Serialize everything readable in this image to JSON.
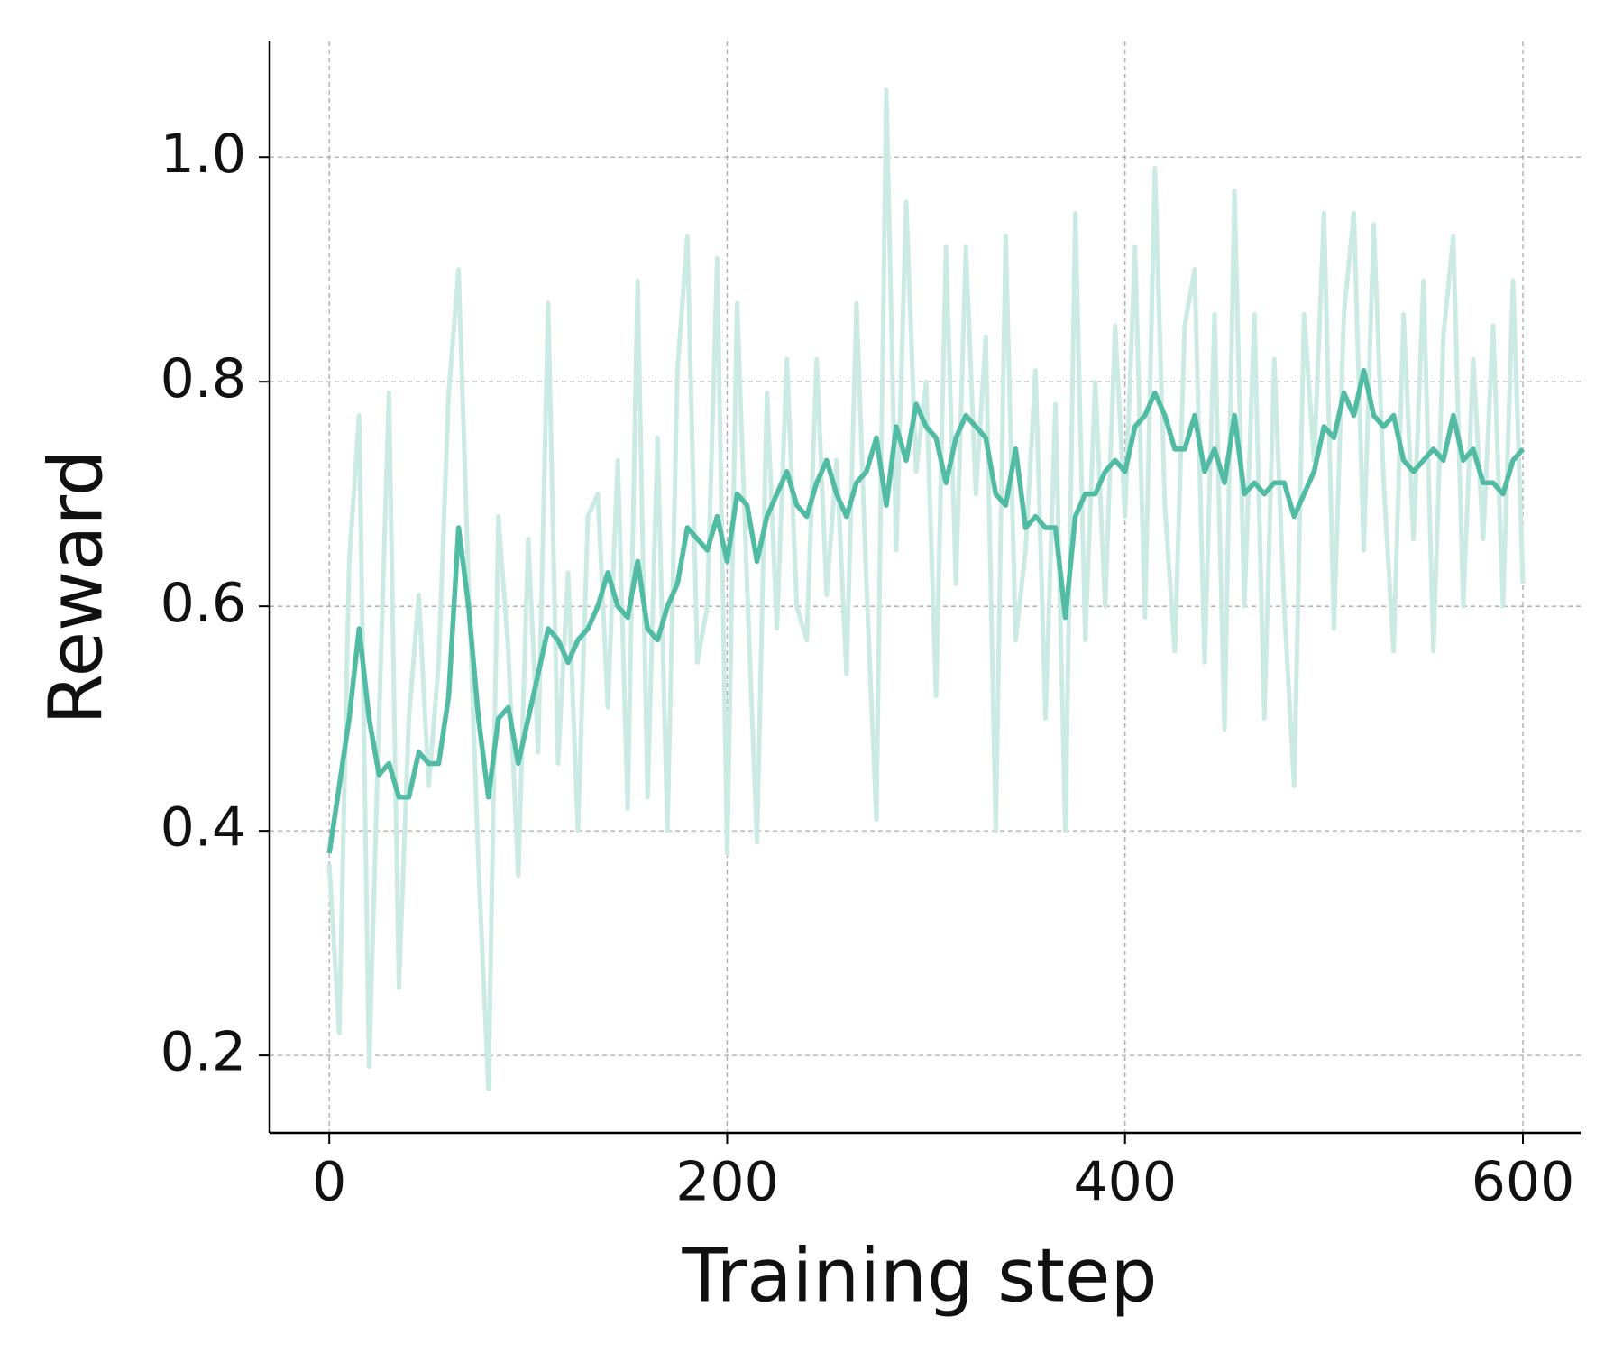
{
  "chart_data": {
    "type": "line",
    "x_label": "Training step",
    "y_label": "Reward",
    "x": [
      0,
      5,
      10,
      15,
      20,
      25,
      30,
      35,
      40,
      45,
      50,
      55,
      60,
      65,
      70,
      75,
      80,
      85,
      90,
      95,
      100,
      105,
      110,
      115,
      120,
      125,
      130,
      135,
      140,
      145,
      150,
      155,
      160,
      165,
      170,
      175,
      180,
      185,
      190,
      195,
      200,
      205,
      210,
      215,
      220,
      225,
      230,
      235,
      240,
      245,
      250,
      255,
      260,
      265,
      270,
      275,
      280,
      285,
      290,
      295,
      300,
      305,
      310,
      315,
      320,
      325,
      330,
      335,
      340,
      345,
      350,
      355,
      360,
      365,
      370,
      375,
      380,
      385,
      390,
      395,
      400,
      405,
      410,
      415,
      420,
      425,
      430,
      435,
      440,
      445,
      450,
      455,
      460,
      465,
      470,
      475,
      480,
      485,
      490,
      495,
      500,
      505,
      510,
      515,
      520,
      525,
      530,
      535,
      540,
      545,
      550,
      555,
      560,
      565,
      570,
      575,
      580,
      585,
      590,
      595,
      600
    ],
    "series": [
      {
        "color": "#cbeae4",
        "values": [
          0.37,
          0.22,
          0.64,
          0.77,
          0.19,
          0.5,
          0.79,
          0.26,
          0.5,
          0.61,
          0.44,
          0.55,
          0.79,
          0.9,
          0.62,
          0.37,
          0.17,
          0.68,
          0.56,
          0.36,
          0.66,
          0.47,
          0.87,
          0.46,
          0.63,
          0.4,
          0.68,
          0.7,
          0.51,
          0.73,
          0.42,
          0.89,
          0.43,
          0.75,
          0.4,
          0.81,
          0.93,
          0.55,
          0.6,
          0.91,
          0.38,
          0.87,
          0.62,
          0.39,
          0.79,
          0.58,
          0.82,
          0.6,
          0.57,
          0.82,
          0.61,
          0.73,
          0.54,
          0.87,
          0.62,
          0.41,
          1.06,
          0.65,
          0.96,
          0.72,
          0.8,
          0.52,
          0.92,
          0.62,
          0.92,
          0.7,
          0.84,
          0.4,
          0.93,
          0.57,
          0.65,
          0.81,
          0.5,
          0.78,
          0.4,
          0.95,
          0.57,
          0.8,
          0.6,
          0.85,
          0.68,
          0.92,
          0.59,
          0.99,
          0.69,
          0.56,
          0.85,
          0.9,
          0.55,
          0.86,
          0.49,
          0.97,
          0.6,
          0.86,
          0.5,
          0.82,
          0.6,
          0.44,
          0.86,
          0.73,
          0.95,
          0.58,
          0.86,
          0.95,
          0.65,
          0.94,
          0.71,
          0.56,
          0.86,
          0.66,
          0.89,
          0.56,
          0.84,
          0.93,
          0.6,
          0.82,
          0.66,
          0.85,
          0.6,
          0.89,
          0.62
        ]
      },
      {
        "color": "#52bba3",
        "values": [
          0.38,
          0.44,
          0.5,
          0.58,
          0.5,
          0.45,
          0.46,
          0.43,
          0.43,
          0.47,
          0.46,
          0.46,
          0.52,
          0.67,
          0.6,
          0.5,
          0.43,
          0.5,
          0.51,
          0.46,
          0.5,
          0.54,
          0.58,
          0.57,
          0.55,
          0.57,
          0.58,
          0.6,
          0.63,
          0.6,
          0.59,
          0.64,
          0.58,
          0.57,
          0.6,
          0.62,
          0.67,
          0.66,
          0.65,
          0.68,
          0.64,
          0.7,
          0.69,
          0.64,
          0.68,
          0.7,
          0.72,
          0.69,
          0.68,
          0.71,
          0.73,
          0.7,
          0.68,
          0.71,
          0.72,
          0.75,
          0.69,
          0.76,
          0.73,
          0.78,
          0.76,
          0.75,
          0.71,
          0.75,
          0.77,
          0.76,
          0.75,
          0.7,
          0.69,
          0.74,
          0.67,
          0.68,
          0.67,
          0.67,
          0.59,
          0.68,
          0.7,
          0.7,
          0.72,
          0.73,
          0.72,
          0.76,
          0.77,
          0.79,
          0.77,
          0.74,
          0.74,
          0.77,
          0.72,
          0.74,
          0.71,
          0.77,
          0.7,
          0.71,
          0.7,
          0.71,
          0.71,
          0.68,
          0.7,
          0.72,
          0.76,
          0.75,
          0.79,
          0.77,
          0.81,
          0.77,
          0.76,
          0.77,
          0.73,
          0.72,
          0.73,
          0.74,
          0.73,
          0.77,
          0.73,
          0.74,
          0.71,
          0.71,
          0.7,
          0.73,
          0.74
        ]
      }
    ],
    "xlim": [
      -30,
      629
    ],
    "ylim": [
      0.131,
      1.103
    ],
    "xticks": [
      0,
      200,
      400,
      600
    ],
    "yticks": [
      0.2,
      0.4,
      0.6,
      0.8,
      {
        "value": 1,
        "label": "1.0"
      }
    ],
    "grid": true
  }
}
